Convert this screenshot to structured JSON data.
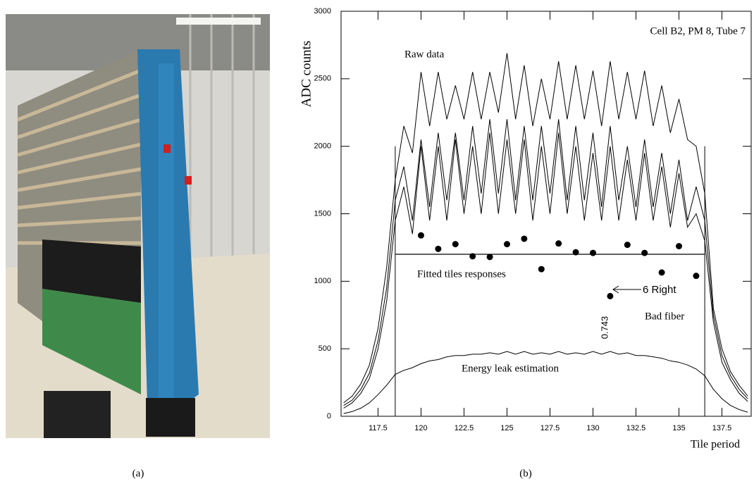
{
  "captions": [
    "(a)",
    "(b)"
  ],
  "chart_data": {
    "type": "line",
    "title": "Cell B2,  PM 8,  Tube 7",
    "ylabel": "ADC counts",
    "xlabel": "Tile period",
    "annotations": [
      "Raw data",
      "Fitted tiles responses",
      "6 Right",
      "Bad fiber",
      "0.743",
      "Energy leak estimation"
    ],
    "xlim": [
      115.35,
      139.2
    ],
    "ylim": [
      0,
      3000
    ],
    "xticks": [
      117.5,
      120,
      122.5,
      125,
      127.5,
      130,
      132.5,
      135,
      137.5
    ],
    "yticks": [
      0,
      500,
      1000,
      1500,
      2000,
      2500,
      3000
    ],
    "x": [
      115.5,
      116,
      116.5,
      117,
      117.5,
      118,
      118.5,
      119,
      119.5,
      120,
      120.5,
      121,
      121.5,
      122,
      122.5,
      123,
      123.5,
      124,
      124.5,
      125,
      125.5,
      126,
      126.5,
      127,
      127.5,
      128,
      128.5,
      129,
      129.5,
      130,
      130.5,
      131,
      131.5,
      132,
      132.5,
      133,
      133.5,
      134,
      134.5,
      135,
      135.5,
      136,
      136.5,
      137,
      137.5,
      138,
      138.5,
      139
    ],
    "series": [
      {
        "color": "#000000",
        "values": [
          100,
          150,
          240,
          380,
          650,
          1100,
          1750,
          2150,
          1950,
          2550,
          2150,
          2550,
          2200,
          2450,
          2200,
          2550,
          2200,
          2550,
          2250,
          2690,
          2200,
          2600,
          2150,
          2500,
          2200,
          2630,
          2200,
          2600,
          2200,
          2560,
          2150,
          2630,
          2200,
          2550,
          2200,
          2560,
          2150,
          2450,
          2100,
          2350,
          2050,
          2000,
          1650,
          800,
          500,
          330,
          230,
          150
        ]
      },
      {
        "color": "#000000",
        "values": [
          80,
          120,
          200,
          320,
          560,
          950,
          1600,
          1850,
          1450,
          2050,
          1550,
          2100,
          1600,
          2100,
          1600,
          2150,
          1650,
          2200,
          1650,
          2200,
          1600,
          2150,
          1600,
          2150,
          1650,
          2200,
          1600,
          2150,
          1600,
          2100,
          1550,
          2150,
          1600,
          2000,
          1550,
          2050,
          1550,
          1950,
          1500,
          1900,
          1450,
          1700,
          1450,
          750,
          450,
          300,
          200,
          130
        ]
      },
      {
        "color": "#000000",
        "values": [
          60,
          100,
          170,
          280,
          500,
          850,
          1450,
          1700,
          1350,
          2000,
          1450,
          2000,
          1450,
          2050,
          1500,
          2000,
          1500,
          2100,
          1500,
          2050,
          1500,
          2050,
          1450,
          2000,
          1500,
          2100,
          1500,
          2000,
          1450,
          1950,
          1450,
          2000,
          1450,
          1900,
          1450,
          1950,
          1450,
          1850,
          1400,
          1800,
          1400,
          1500,
          1300,
          700,
          400,
          270,
          170,
          110
        ]
      },
      {
        "color": "#000000",
        "values": [
          20,
          35,
          60,
          100,
          160,
          230,
          310,
          340,
          360,
          390,
          410,
          420,
          440,
          450,
          450,
          460,
          460,
          470,
          460,
          480,
          460,
          480,
          460,
          470,
          460,
          480,
          460,
          470,
          460,
          480,
          460,
          480,
          460,
          470,
          450,
          450,
          440,
          430,
          410,
          400,
          380,
          350,
          300,
          200,
          130,
          80,
          50,
          30
        ]
      }
    ],
    "points": {
      "color": "#000000",
      "x": [
        120,
        121,
        122,
        123,
        124,
        125,
        126,
        127,
        128,
        129,
        130,
        131,
        132,
        133,
        134,
        135,
        136
      ],
      "values": [
        1340,
        1240,
        1275,
        1185,
        1180,
        1275,
        1315,
        1090,
        1280,
        1215,
        1210,
        890,
        1270,
        1210,
        1065,
        1260,
        1040
      ]
    },
    "limits": {
      "x": [
        118.5,
        136.5
      ],
      "top": 2000,
      "level": 1200
    }
  }
}
